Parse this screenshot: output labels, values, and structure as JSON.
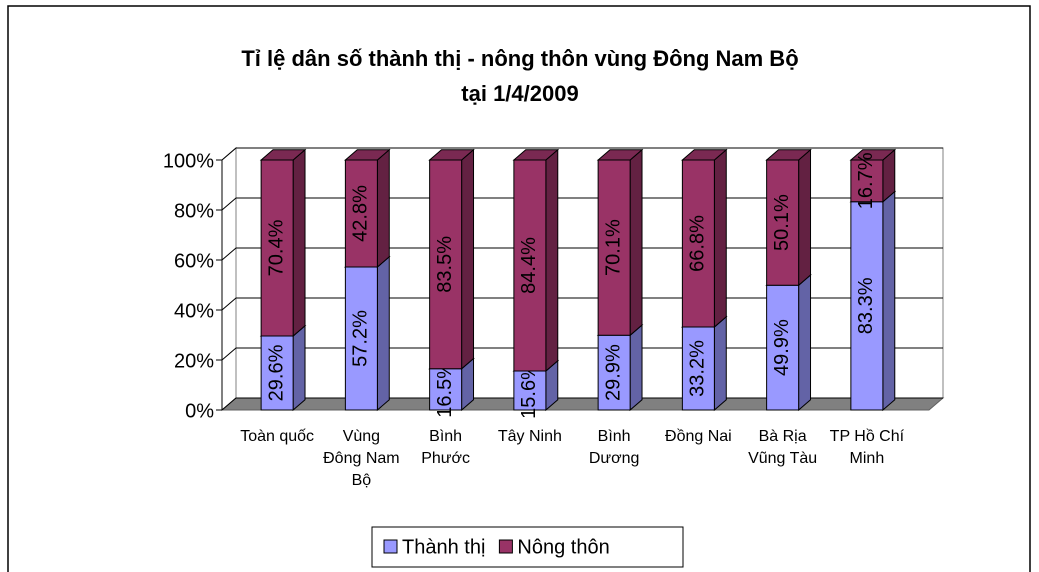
{
  "chart_data": {
    "type": "bar3d_stacked",
    "title": [
      "Tỉ lệ dân số thành thị - nông thôn vùng Đông Nam Bộ",
      "tại 1/4/2009"
    ],
    "categories": [
      "Toàn quốc",
      "Vùng Đông Nam Bộ",
      "Bình Phước",
      "Tây Ninh",
      "Bình Dương",
      "Đồng Nai",
      "Bà Rịa Vũng Tàu",
      "TP Hồ Chí Minh"
    ],
    "series": [
      {
        "name": "Thành thị",
        "color": "#9999ff",
        "values": [
          29.6,
          57.2,
          16.5,
          15.6,
          29.9,
          33.2,
          49.9,
          83.3
        ],
        "value_labels": [
          "29.6%",
          "57.2%",
          "16.5%",
          "15.6%",
          "29.9%",
          "33.2%",
          "49.9%",
          "83.3%"
        ]
      },
      {
        "name": "Nông thôn",
        "color": "#993366",
        "values": [
          70.4,
          42.8,
          83.5,
          84.4,
          70.1,
          66.8,
          50.1,
          16.7
        ],
        "value_labels": [
          "70.4%",
          "42.8%",
          "83.5%",
          "84.4%",
          "70.1%",
          "66.8%",
          "50.1%",
          "16.7%"
        ]
      }
    ],
    "ylim": [
      0,
      100
    ],
    "yticks": [
      {
        "value": 0,
        "label": "0%"
      },
      {
        "value": 20,
        "label": "20%"
      },
      {
        "value": 40,
        "label": "40%"
      },
      {
        "value": 60,
        "label": "60%"
      },
      {
        "value": 80,
        "label": "80%"
      },
      {
        "value": 100,
        "label": "100%"
      }
    ],
    "grid": true,
    "legend": "bottom"
  }
}
